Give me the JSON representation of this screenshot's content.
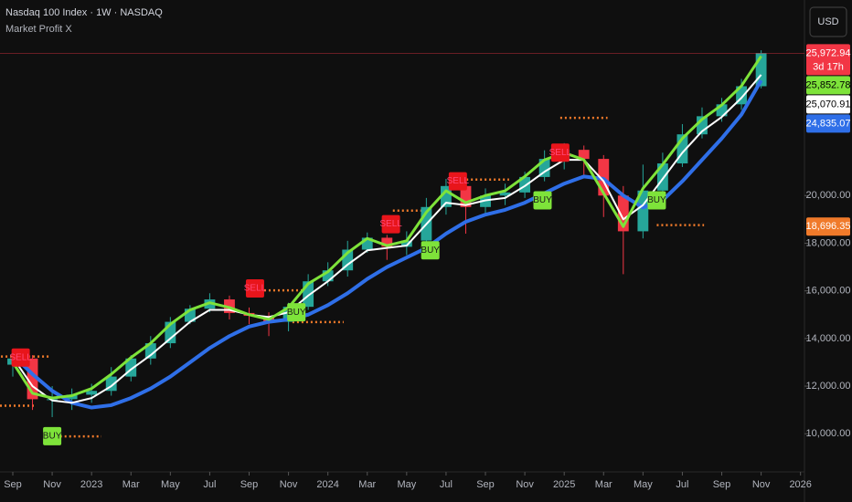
{
  "chart_data": {
    "type": "candlestick",
    "title": "Nasdaq 100 Index · 1W · NASDAQ",
    "subtitle": "Market Profit X",
    "currency": "USD",
    "xlim": [
      -0.65,
      40.2
    ],
    "xticks": [
      {
        "value": 0,
        "label": "Sep"
      },
      {
        "value": 2,
        "label": "Nov"
      },
      {
        "value": 4,
        "label": "2023"
      },
      {
        "value": 6,
        "label": "Mar"
      },
      {
        "value": 8,
        "label": "May"
      },
      {
        "value": 10,
        "label": "Jul"
      },
      {
        "value": 12,
        "label": "Sep"
      },
      {
        "value": 14,
        "label": "Nov"
      },
      {
        "value": 16,
        "label": "2024"
      },
      {
        "value": 18,
        "label": "Mar"
      },
      {
        "value": 20,
        "label": "May"
      },
      {
        "value": 22,
        "label": "Jul"
      },
      {
        "value": 24,
        "label": "Sep"
      },
      {
        "value": 26,
        "label": "Nov"
      },
      {
        "value": 28,
        "label": "2025"
      },
      {
        "value": 30,
        "label": "Mar"
      },
      {
        "value": 32,
        "label": "May"
      },
      {
        "value": 34,
        "label": "Jul"
      },
      {
        "value": 36,
        "label": "Sep"
      },
      {
        "value": 38,
        "label": "Nov"
      },
      {
        "value": 40,
        "label": "2026"
      }
    ],
    "ylim": [
      8400,
      28210
    ],
    "yticks": [
      {
        "value": 10000,
        "label": "10,000.00"
      },
      {
        "value": 12000,
        "label": "12,000.00"
      },
      {
        "value": 14000,
        "label": "14,000.00"
      },
      {
        "value": 16000,
        "label": "16,000.00"
      },
      {
        "value": 18000,
        "label": "18,000.00"
      },
      {
        "value": 20000,
        "label": "20,000.00"
      }
    ],
    "up_color": "#26a69a",
    "down_color": "#f23645",
    "x": [
      0,
      1,
      2,
      3,
      4,
      5,
      6,
      7,
      8,
      9,
      10,
      11,
      12,
      13,
      14,
      15,
      16,
      17,
      18,
      19,
      20,
      21,
      22,
      23,
      24,
      25,
      26,
      27,
      28,
      29,
      30,
      31,
      32,
      33,
      34,
      35,
      36,
      37,
      38
    ],
    "open": [
      12900,
      13160,
      11450,
      11450,
      11640,
      11800,
      12400,
      13160,
      13800,
      14700,
      15250,
      15640,
      15070,
      14950,
      14700,
      15330,
      16400,
      16860,
      17730,
      18230,
      17850,
      18110,
      19520,
      20400,
      19520,
      20000,
      20130,
      20780,
      21540,
      21920,
      21540,
      20000,
      18500,
      20210,
      21350,
      22570,
      23330,
      23830,
      24590
    ],
    "high": [
      13500,
      13300,
      12000,
      11900,
      12100,
      12800,
      13300,
      14100,
      14900,
      15400,
      15900,
      15800,
      15300,
      15100,
      15500,
      16700,
      17200,
      18100,
      18450,
      18350,
      18500,
      19900,
      20700,
      20500,
      20300,
      20500,
      21000,
      21900,
      22200,
      22100,
      21700,
      20400,
      21300,
      21800,
      23000,
      23700,
      24100,
      24900,
      26100
    ],
    "low": [
      12400,
      11000,
      10700,
      11000,
      11300,
      11600,
      12200,
      12900,
      13600,
      14600,
      15100,
      14800,
      14600,
      14100,
      14300,
      15200,
      16200,
      16600,
      17600,
      17300,
      17500,
      18000,
      19200,
      18400,
      19200,
      19600,
      19900,
      20600,
      21100,
      20800,
      19100,
      16700,
      18200,
      20000,
      21200,
      22400,
      23100,
      23600,
      24500
    ],
    "close": [
      13160,
      11450,
      11450,
      11640,
      11800,
      12400,
      13160,
      13800,
      14700,
      15250,
      15640,
      15070,
      14950,
      14700,
      15330,
      16400,
      16860,
      17730,
      18230,
      17850,
      18110,
      19520,
      20400,
      19520,
      20000,
      20130,
      20780,
      21540,
      21920,
      21540,
      20000,
      18500,
      20210,
      21350,
      22570,
      23330,
      23830,
      24590,
      25972.94
    ],
    "series": [
      {
        "color": "#2f6fe8",
        "width": 4,
        "values": [
          13300,
          12500,
          11800,
          11300,
          11100,
          11200,
          11500,
          11900,
          12400,
          13000,
          13600,
          14100,
          14500,
          14700,
          14800,
          15000,
          15400,
          15900,
          16500,
          17000,
          17400,
          17800,
          18400,
          18900,
          19200,
          19400,
          19700,
          20100,
          20500,
          20800,
          20700,
          20000,
          19500,
          19800,
          20600,
          21500,
          22400,
          23400,
          24835.07
        ]
      },
      {
        "color": "#ffffff",
        "width": 2,
        "values": [
          13200,
          12000,
          11400,
          11300,
          11500,
          12000,
          12700,
          13300,
          14000,
          14700,
          15200,
          15200,
          15000,
          14900,
          15100,
          15800,
          16400,
          17100,
          17700,
          17800,
          17900,
          18800,
          19700,
          19600,
          19800,
          19900,
          20400,
          21000,
          21500,
          21500,
          20600,
          19000,
          19600,
          20700,
          21800,
          22700,
          23300,
          24100,
          25070.91
        ]
      },
      {
        "color": "#7ee33a",
        "width": 3,
        "values": [
          13000,
          11700,
          11500,
          11600,
          11900,
          12500,
          13200,
          13800,
          14600,
          15200,
          15500,
          15300,
          15000,
          14800,
          15300,
          16300,
          16800,
          17600,
          18200,
          17900,
          18100,
          19300,
          20200,
          19700,
          20000,
          20200,
          20800,
          21500,
          21800,
          21500,
          20100,
          18700,
          20300,
          21300,
          22400,
          23200,
          23800,
          24600,
          25852.78
        ]
      }
    ],
    "signals": [
      {
        "x": 0.4,
        "value": 13200,
        "label": "SELL",
        "color": "#e8151b"
      },
      {
        "x": 2,
        "value": 9900,
        "label": "BUY",
        "color": "#7ee33a"
      },
      {
        "x": 12.3,
        "value": 16100,
        "label": "SELL",
        "color": "#e8151b"
      },
      {
        "x": 14.4,
        "value": 15100,
        "label": "BUY",
        "color": "#7ee33a"
      },
      {
        "x": 19.2,
        "value": 18800,
        "label": "SELL",
        "color": "#e8151b"
      },
      {
        "x": 21.2,
        "value": 17700,
        "label": "BUY",
        "color": "#7ee33a"
      },
      {
        "x": 22.6,
        "value": 20600,
        "label": "SELL",
        "color": "#e8151b"
      },
      {
        "x": 26.9,
        "value": 19800,
        "label": "BUY",
        "color": "#7ee33a"
      },
      {
        "x": 27.8,
        "value": 21800,
        "label": "SELL",
        "color": "#e8151b"
      },
      {
        "x": 32.7,
        "value": 19800,
        "label": "BUY",
        "color": "#7ee33a"
      }
    ],
    "levels": [
      {
        "x": [
          -0.6,
          1.9
        ],
        "value": 13240
      },
      {
        "x": [
          -0.65,
          1.1
        ],
        "value": 11180
      },
      {
        "x": [
          2.4,
          4.5
        ],
        "value": 9890
      },
      {
        "x": [
          12.3,
          14.8
        ],
        "value": 16020
      },
      {
        "x": [
          14.2,
          16.8
        ],
        "value": 14690
      },
      {
        "x": [
          19.3,
          21.3
        ],
        "value": 19370
      },
      {
        "x": [
          22.8,
          25.2
        ],
        "value": 20670
      },
      {
        "x": [
          27.8,
          30.2
        ],
        "value": 23260
      },
      {
        "x": [
          32.7,
          35.1
        ],
        "value": 18760
      }
    ],
    "level_color": "#f07a2a",
    "price_tags": [
      {
        "value": 25972.94,
        "label": "25,972.94",
        "color": "#f23645",
        "text_color": "#ffffff",
        "countdown": "3d 17h"
      },
      {
        "value": 25852.78,
        "label": "25,852.78",
        "color": "#7ee33a",
        "text_color": "#000000"
      },
      {
        "value": 25070.91,
        "label": "25,070.91",
        "color": "#ffffff",
        "text_color": "#000000"
      },
      {
        "value": 24835.07,
        "label": "24,835.07",
        "color": "#2f6fe8",
        "text_color": "#ffffff"
      },
      {
        "value": 18696.35,
        "label": "18,696.35",
        "color": "#f07a2a",
        "text_color": "#ffffff"
      }
    ]
  }
}
